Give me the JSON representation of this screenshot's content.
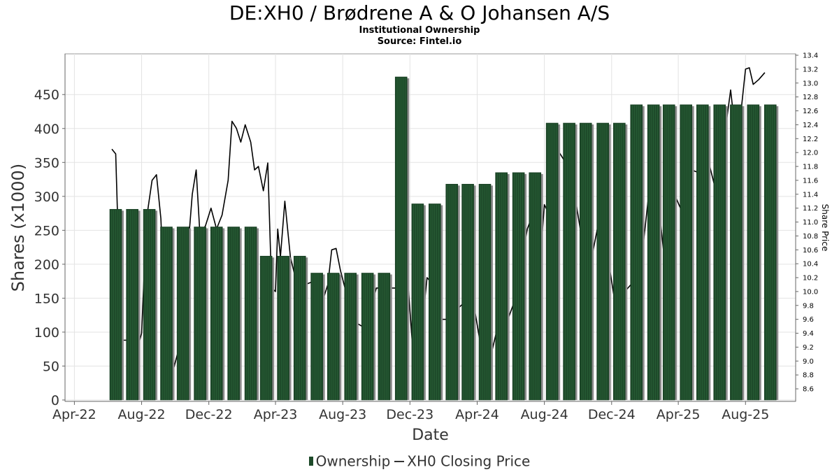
{
  "chart_data": {
    "type": "bar",
    "title": "DE:XH0 / Brødrene A & O Johansen A/S",
    "subtitle_lines": [
      "Institutional Ownership",
      "Source: Fintel.io"
    ],
    "xlabel": "Date",
    "ylabel": "Shares (x1000)",
    "y2label": "Share Price",
    "ylim": [
      0,
      510
    ],
    "y2lim": [
      8.5,
      13.4
    ],
    "yticks": [
      0,
      50,
      100,
      150,
      200,
      250,
      300,
      350,
      400,
      450
    ],
    "y2ticks": [
      8.6,
      8.8,
      9.0,
      9.2,
      9.4,
      9.6,
      9.8,
      10.0,
      10.2,
      10.4,
      10.6,
      10.8,
      11.0,
      11.2,
      11.4,
      11.6,
      11.8,
      12.0,
      12.2,
      12.4,
      12.6,
      12.8,
      13.0,
      13.2,
      13.4
    ],
    "xtick_labels": [
      {
        "label": "Apr-22",
        "date": "2022-04-01"
      },
      {
        "label": "Aug-22",
        "date": "2022-08-01"
      },
      {
        "label": "Dec-22",
        "date": "2022-12-01"
      },
      {
        "label": "Apr-23",
        "date": "2023-04-01"
      },
      {
        "label": "Aug-23",
        "date": "2023-08-01"
      },
      {
        "label": "Dec-23",
        "date": "2023-12-01"
      },
      {
        "label": "Apr-24",
        "date": "2024-04-01"
      },
      {
        "label": "Aug-24",
        "date": "2024-08-01"
      },
      {
        "label": "Dec-24",
        "date": "2024-12-01"
      },
      {
        "label": "Apr-25",
        "date": "2025-04-01"
      },
      {
        "label": "Aug-25",
        "date": "2025-08-01"
      }
    ],
    "xlim": [
      "2022-03-15",
      "2025-10-31"
    ],
    "grid": true,
    "legend_position": "bottom",
    "series": [
      {
        "name": "Ownership",
        "type": "bar",
        "color": "#1e4a2a",
        "points": [
          {
            "x": "2022-06-15",
            "y": 281
          },
          {
            "x": "2022-07-15",
            "y": 281
          },
          {
            "x": "2022-08-15",
            "y": 281
          },
          {
            "x": "2022-09-15",
            "y": 255
          },
          {
            "x": "2022-10-15",
            "y": 255
          },
          {
            "x": "2022-11-15",
            "y": 255
          },
          {
            "x": "2022-12-15",
            "y": 255
          },
          {
            "x": "2023-01-15",
            "y": 255
          },
          {
            "x": "2023-02-15",
            "y": 255
          },
          {
            "x": "2023-03-15",
            "y": 212
          },
          {
            "x": "2023-04-15",
            "y": 212
          },
          {
            "x": "2023-05-15",
            "y": 212
          },
          {
            "x": "2023-06-15",
            "y": 187
          },
          {
            "x": "2023-07-15",
            "y": 187
          },
          {
            "x": "2023-08-15",
            "y": 187
          },
          {
            "x": "2023-09-15",
            "y": 187
          },
          {
            "x": "2023-10-15",
            "y": 187
          },
          {
            "x": "2023-11-15",
            "y": 476
          },
          {
            "x": "2023-12-15",
            "y": 289
          },
          {
            "x": "2024-01-15",
            "y": 289
          },
          {
            "x": "2024-02-15",
            "y": 318
          },
          {
            "x": "2024-03-15",
            "y": 318
          },
          {
            "x": "2024-04-15",
            "y": 318
          },
          {
            "x": "2024-05-15",
            "y": 335
          },
          {
            "x": "2024-06-15",
            "y": 335
          },
          {
            "x": "2024-07-15",
            "y": 335
          },
          {
            "x": "2024-08-15",
            "y": 408
          },
          {
            "x": "2024-09-15",
            "y": 408
          },
          {
            "x": "2024-10-15",
            "y": 408
          },
          {
            "x": "2024-11-15",
            "y": 408
          },
          {
            "x": "2024-12-15",
            "y": 408
          },
          {
            "x": "2025-01-15",
            "y": 435
          },
          {
            "x": "2025-02-15",
            "y": 435
          },
          {
            "x": "2025-03-15",
            "y": 435
          },
          {
            "x": "2025-04-15",
            "y": 435
          },
          {
            "x": "2025-05-15",
            "y": 435
          },
          {
            "x": "2025-06-15",
            "y": 435
          },
          {
            "x": "2025-07-15",
            "y": 435
          },
          {
            "x": "2025-08-15",
            "y": 435
          },
          {
            "x": "2025-09-15",
            "y": 435
          }
        ]
      },
      {
        "name": "XH0 Closing Price",
        "type": "line",
        "axis": "right",
        "color": "#000000",
        "points": [
          {
            "x": "2022-06-08",
            "y": 12.05
          },
          {
            "x": "2022-06-15",
            "y": 11.98
          },
          {
            "x": "2022-06-25",
            "y": 9.3
          },
          {
            "x": "2022-07-10",
            "y": 9.3
          },
          {
            "x": "2022-07-20",
            "y": 9.05
          },
          {
            "x": "2022-08-01",
            "y": 9.4
          },
          {
            "x": "2022-08-10",
            "y": 11.05
          },
          {
            "x": "2022-08-20",
            "y": 11.6
          },
          {
            "x": "2022-08-28",
            "y": 11.68
          },
          {
            "x": "2022-09-05",
            "y": 11.05
          },
          {
            "x": "2022-09-15",
            "y": 9.2
          },
          {
            "x": "2022-09-25",
            "y": 8.8
          },
          {
            "x": "2022-10-05",
            "y": 9.1
          },
          {
            "x": "2022-10-15",
            "y": 10.9
          },
          {
            "x": "2022-10-25",
            "y": 10.7
          },
          {
            "x": "2022-11-01",
            "y": 11.4
          },
          {
            "x": "2022-11-08",
            "y": 11.75
          },
          {
            "x": "2022-11-15",
            "y": 10.8
          },
          {
            "x": "2022-11-25",
            "y": 10.95
          },
          {
            "x": "2022-12-05",
            "y": 11.2
          },
          {
            "x": "2022-12-15",
            "y": 10.9
          },
          {
            "x": "2022-12-25",
            "y": 11.1
          },
          {
            "x": "2023-01-05",
            "y": 11.6
          },
          {
            "x": "2023-01-12",
            "y": 12.45
          },
          {
            "x": "2023-01-20",
            "y": 12.35
          },
          {
            "x": "2023-01-28",
            "y": 12.15
          },
          {
            "x": "2023-02-05",
            "y": 12.4
          },
          {
            "x": "2023-02-15",
            "y": 12.15
          },
          {
            "x": "2023-02-22",
            "y": 11.75
          },
          {
            "x": "2023-03-01",
            "y": 11.8
          },
          {
            "x": "2023-03-10",
            "y": 11.45
          },
          {
            "x": "2023-03-18",
            "y": 11.85
          },
          {
            "x": "2023-03-25",
            "y": 10.05
          },
          {
            "x": "2023-04-01",
            "y": 10.0
          },
          {
            "x": "2023-04-05",
            "y": 10.9
          },
          {
            "x": "2023-04-10",
            "y": 10.5
          },
          {
            "x": "2023-04-18",
            "y": 11.3
          },
          {
            "x": "2023-04-28",
            "y": 10.5
          },
          {
            "x": "2023-05-10",
            "y": 10.1
          },
          {
            "x": "2023-05-25",
            "y": 10.1
          },
          {
            "x": "2023-06-10",
            "y": 10.15
          },
          {
            "x": "2023-06-25",
            "y": 9.85
          },
          {
            "x": "2023-07-05",
            "y": 10.1
          },
          {
            "x": "2023-07-12",
            "y": 10.6
          },
          {
            "x": "2023-07-20",
            "y": 10.62
          },
          {
            "x": "2023-07-28",
            "y": 10.3
          },
          {
            "x": "2023-08-10",
            "y": 9.9
          },
          {
            "x": "2023-08-25",
            "y": 9.55
          },
          {
            "x": "2023-09-05",
            "y": 9.5
          },
          {
            "x": "2023-09-15",
            "y": 9.6
          },
          {
            "x": "2023-10-01",
            "y": 10.05
          },
          {
            "x": "2023-10-15",
            "y": 10.05
          },
          {
            "x": "2023-11-01",
            "y": 10.05
          },
          {
            "x": "2023-11-15",
            "y": 10.05
          },
          {
            "x": "2023-11-28",
            "y": 10.05
          },
          {
            "x": "2023-12-08",
            "y": 8.95
          },
          {
            "x": "2023-12-18",
            "y": 9.1
          },
          {
            "x": "2024-01-01",
            "y": 10.2
          },
          {
            "x": "2024-01-12",
            "y": 10.1
          },
          {
            "x": "2024-01-20",
            "y": 9.35
          },
          {
            "x": "2024-01-28",
            "y": 9.6
          },
          {
            "x": "2024-02-10",
            "y": 9.6
          },
          {
            "x": "2024-02-25",
            "y": 9.75
          },
          {
            "x": "2024-03-10",
            "y": 9.85
          },
          {
            "x": "2024-03-25",
            "y": 9.85
          },
          {
            "x": "2024-04-10",
            "y": 9.1
          },
          {
            "x": "2024-04-25",
            "y": 9.05
          },
          {
            "x": "2024-05-10",
            "y": 9.55
          },
          {
            "x": "2024-05-22",
            "y": 9.5
          },
          {
            "x": "2024-06-05",
            "y": 9.8
          },
          {
            "x": "2024-06-20",
            "y": 10.4
          },
          {
            "x": "2024-07-01",
            "y": 10.9
          },
          {
            "x": "2024-07-15",
            "y": 11.2
          },
          {
            "x": "2024-07-25",
            "y": 10.5
          },
          {
            "x": "2024-08-01",
            "y": 11.25
          },
          {
            "x": "2024-08-10",
            "y": 11.1
          },
          {
            "x": "2024-08-20",
            "y": 11.4
          },
          {
            "x": "2024-08-28",
            "y": 12.0
          },
          {
            "x": "2024-09-05",
            "y": 11.9
          },
          {
            "x": "2024-09-15",
            "y": 11.3
          },
          {
            "x": "2024-09-25",
            "y": 11.4
          },
          {
            "x": "2024-10-05",
            "y": 10.9
          },
          {
            "x": "2024-10-15",
            "y": 10.6
          },
          {
            "x": "2024-10-25",
            "y": 10.45
          },
          {
            "x": "2024-11-05",
            "y": 10.9
          },
          {
            "x": "2024-11-15",
            "y": 10.4
          },
          {
            "x": "2024-11-25",
            "y": 10.45
          },
          {
            "x": "2024-12-05",
            "y": 9.95
          },
          {
            "x": "2024-12-15",
            "y": 9.9
          },
          {
            "x": "2024-12-25",
            "y": 10.0
          },
          {
            "x": "2025-01-05",
            "y": 10.1
          },
          {
            "x": "2025-01-15",
            "y": 10.3
          },
          {
            "x": "2025-01-25",
            "y": 10.5
          },
          {
            "x": "2025-02-05",
            "y": 11.3
          },
          {
            "x": "2025-02-15",
            "y": 11.6
          },
          {
            "x": "2025-02-25",
            "y": 11.2
          },
          {
            "x": "2025-03-05",
            "y": 10.6
          },
          {
            "x": "2025-03-15",
            "y": 11.0
          },
          {
            "x": "2025-03-25",
            "y": 11.4
          },
          {
            "x": "2025-04-05",
            "y": 11.2
          },
          {
            "x": "2025-04-15",
            "y": 11.85
          },
          {
            "x": "2025-04-25",
            "y": 11.75
          },
          {
            "x": "2025-05-05",
            "y": 11.72
          },
          {
            "x": "2025-05-15",
            "y": 11.8
          },
          {
            "x": "2025-05-25",
            "y": 11.9
          },
          {
            "x": "2025-06-05",
            "y": 11.55
          },
          {
            "x": "2025-06-15",
            "y": 11.95
          },
          {
            "x": "2025-06-25",
            "y": 12.3
          },
          {
            "x": "2025-07-05",
            "y": 12.9
          },
          {
            "x": "2025-07-12",
            "y": 12.4
          },
          {
            "x": "2025-07-20",
            "y": 12.3
          },
          {
            "x": "2025-08-01",
            "y": 13.2
          },
          {
            "x": "2025-08-08",
            "y": 13.22
          },
          {
            "x": "2025-08-15",
            "y": 12.98
          },
          {
            "x": "2025-08-25",
            "y": 13.05
          },
          {
            "x": "2025-09-05",
            "y": 13.15
          }
        ]
      }
    ]
  }
}
